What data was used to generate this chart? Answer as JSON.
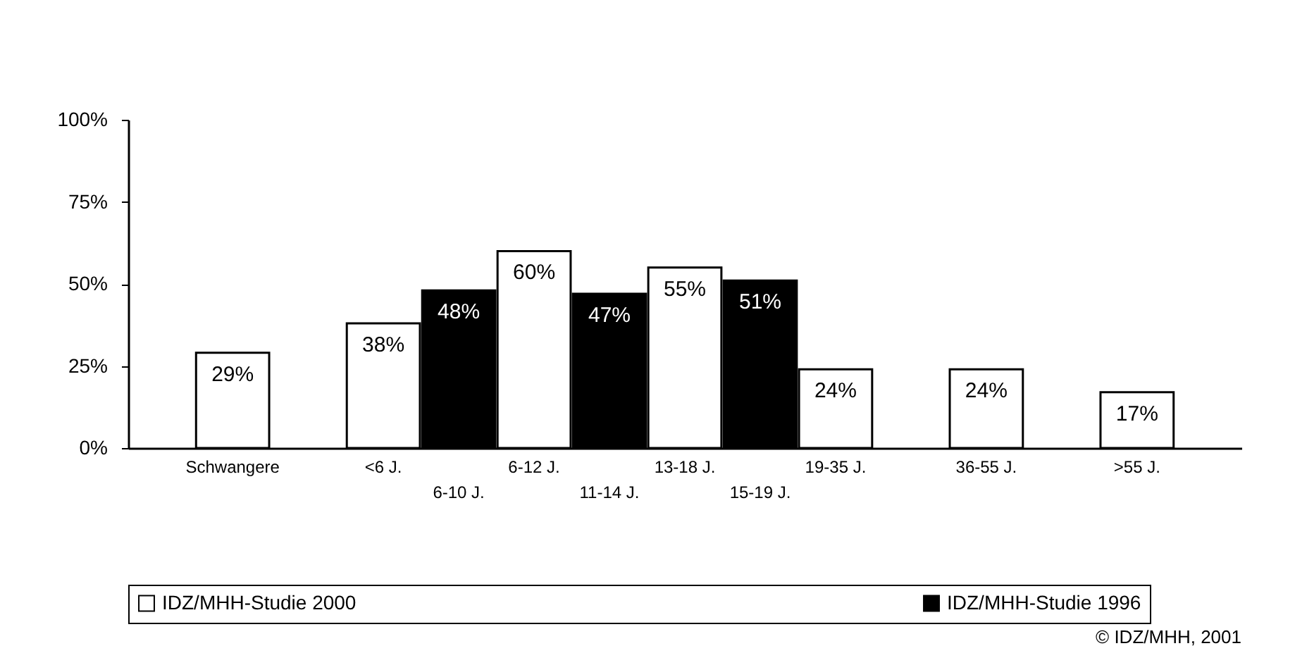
{
  "chart_data": {
    "type": "bar",
    "categories": [
      "Schwangere",
      null,
      "<6 J.",
      "6-10 J.",
      "6-12 J.",
      "11-14 J.",
      "13-18 J.",
      "15-19 J.",
      "19-35 J.",
      null,
      "36-55 J.",
      null,
      ">55 J."
    ],
    "series": [
      {
        "name": "IDZ/MHH-Studie 2000",
        "color": "#ffffff",
        "values": [
          29,
          null,
          38,
          null,
          60,
          null,
          55,
          null,
          24,
          null,
          24,
          null,
          17
        ]
      },
      {
        "name": "IDZ/MHH-Studie 1996",
        "color": "#000000",
        "values": [
          null,
          null,
          null,
          48,
          null,
          47,
          null,
          51,
          null,
          null,
          null,
          null,
          null
        ]
      }
    ],
    "ylim": [
      0,
      100
    ],
    "yticks": [
      {
        "value": 0,
        "label": "0%"
      },
      {
        "value": 25,
        "label": "25%"
      },
      {
        "value": 50,
        "label": "50%"
      },
      {
        "value": 75,
        "label": "75%"
      },
      {
        "value": 100,
        "label": "100%"
      }
    ],
    "value_labels": [
      [
        "29%",
        null,
        "38%",
        null,
        "60%",
        null,
        "55%",
        null,
        "24%",
        null,
        "24%",
        null,
        "17%"
      ],
      [
        null,
        null,
        null,
        "48%",
        null,
        "47%",
        null,
        "51%",
        null,
        null,
        null,
        null,
        null
      ]
    ],
    "grid": false,
    "legend": "bottom",
    "annotations": [
      "© IDZ/MHH, 2001"
    ]
  }
}
